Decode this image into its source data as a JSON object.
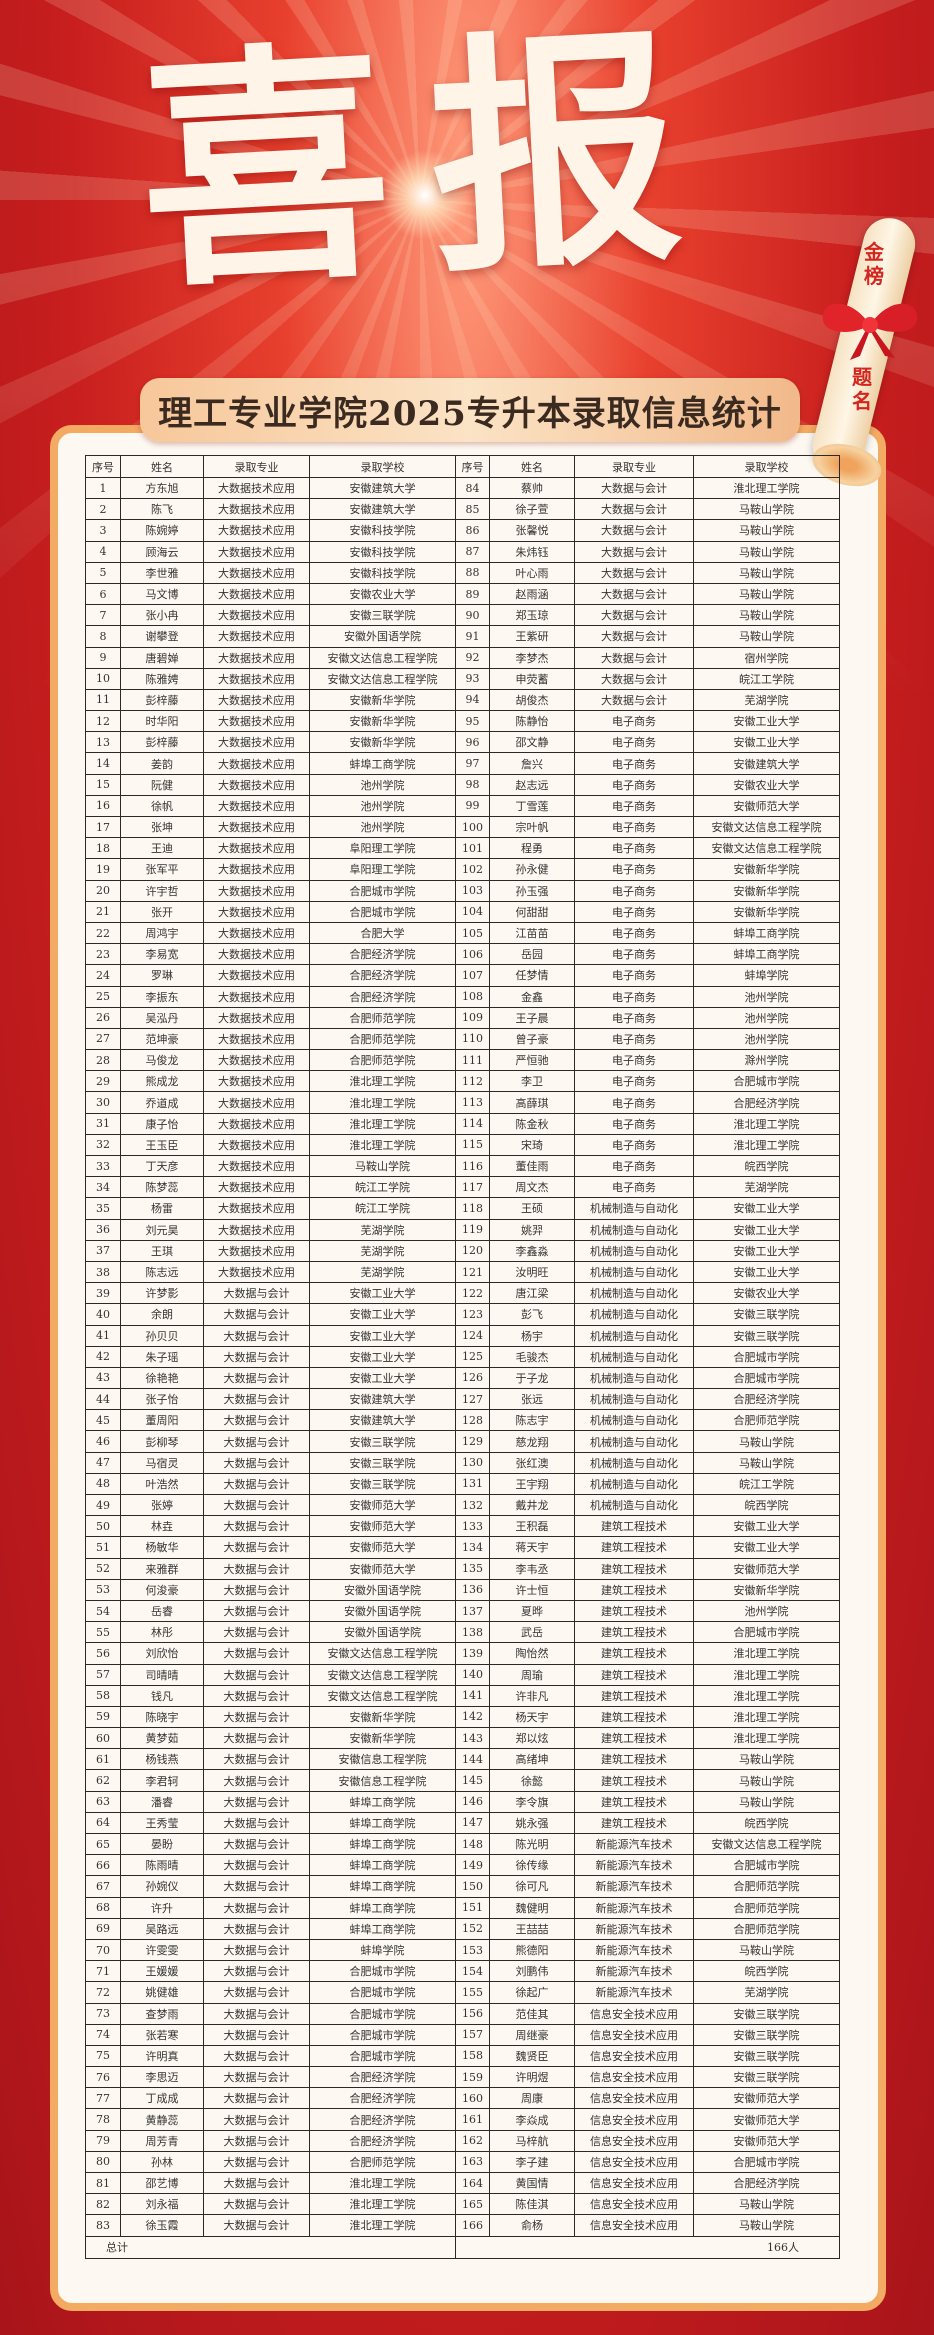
{
  "hero_title": "喜报",
  "banner_title": "理工专业学院2025专升本录取信息统计",
  "scroll_text_top": "金榜",
  "scroll_text_bottom": "题名",
  "colors": {
    "background": "#c81e1e",
    "card_border": "#f3aa62",
    "card_bg": "#fdf8f1",
    "scroll_text": "#d2261e"
  },
  "table": {
    "headers": [
      "序号",
      "姓名",
      "录取专业",
      "录取学校",
      "序号",
      "姓名",
      "录取专业",
      "录取学校"
    ],
    "left_rows": [
      [
        "1",
        "方东旭",
        "大数据技术应用",
        "安徽建筑大学"
      ],
      [
        "2",
        "陈飞",
        "大数据技术应用",
        "安徽建筑大学"
      ],
      [
        "3",
        "陈婉婷",
        "大数据技术应用",
        "安徽科技学院"
      ],
      [
        "4",
        "顾海云",
        "大数据技术应用",
        "安徽科技学院"
      ],
      [
        "5",
        "李世雅",
        "大数据技术应用",
        "安徽科技学院"
      ],
      [
        "6",
        "马文博",
        "大数据技术应用",
        "安徽农业大学"
      ],
      [
        "7",
        "张小冉",
        "大数据技术应用",
        "安徽三联学院"
      ],
      [
        "8",
        "谢攀登",
        "大数据技术应用",
        "安徽外国语学院"
      ],
      [
        "9",
        "唐碧婵",
        "大数据技术应用",
        "安徽文达信息工程学院"
      ],
      [
        "10",
        "陈雅娉",
        "大数据技术应用",
        "安徽文达信息工程学院"
      ],
      [
        "11",
        "彭梓藤",
        "大数据技术应用",
        "安徽新华学院"
      ],
      [
        "12",
        "时华阳",
        "大数据技术应用",
        "安徽新华学院"
      ],
      [
        "13",
        "彭梓藤",
        "大数据技术应用",
        "安徽新华学院"
      ],
      [
        "14",
        "姜韵",
        "大数据技术应用",
        "蚌埠工商学院"
      ],
      [
        "15",
        "阮健",
        "大数据技术应用",
        "池州学院"
      ],
      [
        "16",
        "徐帆",
        "大数据技术应用",
        "池州学院"
      ],
      [
        "17",
        "张坤",
        "大数据技术应用",
        "池州学院"
      ],
      [
        "18",
        "王迪",
        "大数据技术应用",
        "阜阳理工学院"
      ],
      [
        "19",
        "张军平",
        "大数据技术应用",
        "阜阳理工学院"
      ],
      [
        "20",
        "许宇哲",
        "大数据技术应用",
        "合肥城市学院"
      ],
      [
        "21",
        "张开",
        "大数据技术应用",
        "合肥城市学院"
      ],
      [
        "22",
        "周鸿宇",
        "大数据技术应用",
        "合肥大学"
      ],
      [
        "23",
        "李易宽",
        "大数据技术应用",
        "合肥经济学院"
      ],
      [
        "24",
        "罗琳",
        "大数据技术应用",
        "合肥经济学院"
      ],
      [
        "25",
        "李振东",
        "大数据技术应用",
        "合肥经济学院"
      ],
      [
        "26",
        "吴泓丹",
        "大数据技术应用",
        "合肥师范学院"
      ],
      [
        "27",
        "范坤豪",
        "大数据技术应用",
        "合肥师范学院"
      ],
      [
        "28",
        "马俊龙",
        "大数据技术应用",
        "合肥师范学院"
      ],
      [
        "29",
        "熊成龙",
        "大数据技术应用",
        "淮北理工学院"
      ],
      [
        "30",
        "乔道成",
        "大数据技术应用",
        "淮北理工学院"
      ],
      [
        "31",
        "康子怡",
        "大数据技术应用",
        "淮北理工学院"
      ],
      [
        "32",
        "王玉臣",
        "大数据技术应用",
        "淮北理工学院"
      ],
      [
        "33",
        "丁天彦",
        "大数据技术应用",
        "马鞍山学院"
      ],
      [
        "34",
        "陈梦蕊",
        "大数据技术应用",
        "皖江工学院"
      ],
      [
        "35",
        "杨雷",
        "大数据技术应用",
        "皖江工学院"
      ],
      [
        "36",
        "刘元昊",
        "大数据技术应用",
        "芜湖学院"
      ],
      [
        "37",
        "王琪",
        "大数据技术应用",
        "芜湖学院"
      ],
      [
        "38",
        "陈志远",
        "大数据技术应用",
        "芜湖学院"
      ],
      [
        "39",
        "许梦影",
        "大数据与会计",
        "安徽工业大学"
      ],
      [
        "40",
        "余朗",
        "大数据与会计",
        "安徽工业大学"
      ],
      [
        "41",
        "孙贝贝",
        "大数据与会计",
        "安徽工业大学"
      ],
      [
        "42",
        "朱子瑶",
        "大数据与会计",
        "安徽工业大学"
      ],
      [
        "43",
        "徐艳艳",
        "大数据与会计",
        "安徽工业大学"
      ],
      [
        "44",
        "张子怡",
        "大数据与会计",
        "安徽建筑大学"
      ],
      [
        "45",
        "董周阳",
        "大数据与会计",
        "安徽建筑大学"
      ],
      [
        "46",
        "彭柳琴",
        "大数据与会计",
        "安徽三联学院"
      ],
      [
        "47",
        "马宿灵",
        "大数据与会计",
        "安徽三联学院"
      ],
      [
        "48",
        "叶浩然",
        "大数据与会计",
        "安徽三联学院"
      ],
      [
        "49",
        "张婷",
        "大数据与会计",
        "安徽师范大学"
      ],
      [
        "50",
        "林垚",
        "大数据与会计",
        "安徽师范大学"
      ],
      [
        "51",
        "杨敏华",
        "大数据与会计",
        "安徽师范大学"
      ],
      [
        "52",
        "来雅群",
        "大数据与会计",
        "安徽师范大学"
      ],
      [
        "53",
        "何浚豪",
        "大数据与会计",
        "安徽外国语学院"
      ],
      [
        "54",
        "岳睿",
        "大数据与会计",
        "安徽外国语学院"
      ],
      [
        "55",
        "林彤",
        "大数据与会计",
        "安徽外国语学院"
      ],
      [
        "56",
        "刘欣怡",
        "大数据与会计",
        "安徽文达信息工程学院"
      ],
      [
        "57",
        "司晴晴",
        "大数据与会计",
        "安徽文达信息工程学院"
      ],
      [
        "58",
        "钱凡",
        "大数据与会计",
        "安徽文达信息工程学院"
      ],
      [
        "59",
        "陈晓宇",
        "大数据与会计",
        "安徽新华学院"
      ],
      [
        "60",
        "黄梦茹",
        "大数据与会计",
        "安徽新华学院"
      ],
      [
        "61",
        "杨钱燕",
        "大数据与会计",
        "安徽信息工程学院"
      ],
      [
        "62",
        "李君轲",
        "大数据与会计",
        "安徽信息工程学院"
      ],
      [
        "63",
        "潘睿",
        "大数据与会计",
        "蚌埠工商学院"
      ],
      [
        "64",
        "王秀莹",
        "大数据与会计",
        "蚌埠工商学院"
      ],
      [
        "65",
        "晏盼",
        "大数据与会计",
        "蚌埠工商学院"
      ],
      [
        "66",
        "陈雨晴",
        "大数据与会计",
        "蚌埠工商学院"
      ],
      [
        "67",
        "孙婉仪",
        "大数据与会计",
        "蚌埠工商学院"
      ],
      [
        "68",
        "许升",
        "大数据与会计",
        "蚌埠工商学院"
      ],
      [
        "69",
        "吴路远",
        "大数据与会计",
        "蚌埠工商学院"
      ],
      [
        "70",
        "许雯雯",
        "大数据与会计",
        "蚌埠学院"
      ],
      [
        "71",
        "王媛媛",
        "大数据与会计",
        "合肥城市学院"
      ],
      [
        "72",
        "姚健雄",
        "大数据与会计",
        "合肥城市学院"
      ],
      [
        "73",
        "查梦雨",
        "大数据与会计",
        "合肥城市学院"
      ],
      [
        "74",
        "张若寒",
        "大数据与会计",
        "合肥城市学院"
      ],
      [
        "75",
        "许明真",
        "大数据与会计",
        "合肥城市学院"
      ],
      [
        "76",
        "李思迈",
        "大数据与会计",
        "合肥经济学院"
      ],
      [
        "77",
        "丁成成",
        "大数据与会计",
        "合肥经济学院"
      ],
      [
        "78",
        "黄静蕊",
        "大数据与会计",
        "合肥经济学院"
      ],
      [
        "79",
        "周芳青",
        "大数据与会计",
        "合肥经济学院"
      ],
      [
        "80",
        "孙林",
        "大数据与会计",
        "合肥师范学院"
      ],
      [
        "81",
        "邵艺博",
        "大数据与会计",
        "淮北理工学院"
      ],
      [
        "82",
        "刘永福",
        "大数据与会计",
        "淮北理工学院"
      ],
      [
        "83",
        "徐玉霞",
        "大数据与会计",
        "淮北理工学院"
      ]
    ],
    "right_rows": [
      [
        "84",
        "蔡帅",
        "大数据与会计",
        "淮北理工学院"
      ],
      [
        "85",
        "徐子萱",
        "大数据与会计",
        "马鞍山学院"
      ],
      [
        "86",
        "张馨悦",
        "大数据与会计",
        "马鞍山学院"
      ],
      [
        "87",
        "朱炜钰",
        "大数据与会计",
        "马鞍山学院"
      ],
      [
        "88",
        "叶心雨",
        "大数据与会计",
        "马鞍山学院"
      ],
      [
        "89",
        "赵雨涵",
        "大数据与会计",
        "马鞍山学院"
      ],
      [
        "90",
        "郑玉琼",
        "大数据与会计",
        "马鞍山学院"
      ],
      [
        "91",
        "王紫研",
        "大数据与会计",
        "马鞍山学院"
      ],
      [
        "92",
        "李梦杰",
        "大数据与会计",
        "宿州学院"
      ],
      [
        "93",
        "申荧蓄",
        "大数据与会计",
        "皖江工学院"
      ],
      [
        "94",
        "胡俊杰",
        "大数据与会计",
        "芜湖学院"
      ],
      [
        "95",
        "陈静怡",
        "电子商务",
        "安徽工业大学"
      ],
      [
        "96",
        "邵文静",
        "电子商务",
        "安徽工业大学"
      ],
      [
        "97",
        "詹兴",
        "电子商务",
        "安徽建筑大学"
      ],
      [
        "98",
        "赵志远",
        "电子商务",
        "安徽农业大学"
      ],
      [
        "99",
        "丁雪莲",
        "电子商务",
        "安徽师范大学"
      ],
      [
        "100",
        "宗叶帆",
        "电子商务",
        "安徽文达信息工程学院"
      ],
      [
        "101",
        "程勇",
        "电子商务",
        "安徽文达信息工程学院"
      ],
      [
        "102",
        "孙永健",
        "电子商务",
        "安徽新华学院"
      ],
      [
        "103",
        "孙玉强",
        "电子商务",
        "安徽新华学院"
      ],
      [
        "104",
        "何甜甜",
        "电子商务",
        "安徽新华学院"
      ],
      [
        "105",
        "江苗苗",
        "电子商务",
        "蚌埠工商学院"
      ],
      [
        "106",
        "岳园",
        "电子商务",
        "蚌埠工商学院"
      ],
      [
        "107",
        "任梦情",
        "电子商务",
        "蚌埠学院"
      ],
      [
        "108",
        "金鑫",
        "电子商务",
        "池州学院"
      ],
      [
        "109",
        "王子晨",
        "电子商务",
        "池州学院"
      ],
      [
        "110",
        "曾子豪",
        "电子商务",
        "池州学院"
      ],
      [
        "111",
        "严恒驰",
        "电子商务",
        "滁州学院"
      ],
      [
        "112",
        "李卫",
        "电子商务",
        "合肥城市学院"
      ],
      [
        "113",
        "高薛琪",
        "电子商务",
        "合肥经济学院"
      ],
      [
        "114",
        "陈金秋",
        "电子商务",
        "淮北理工学院"
      ],
      [
        "115",
        "宋琦",
        "电子商务",
        "淮北理工学院"
      ],
      [
        "116",
        "董佳雨",
        "电子商务",
        "皖西学院"
      ],
      [
        "117",
        "周文杰",
        "电子商务",
        "芜湖学院"
      ],
      [
        "118",
        "王硕",
        "机械制造与自动化",
        "安徽工业大学"
      ],
      [
        "119",
        "姚羿",
        "机械制造与自动化",
        "安徽工业大学"
      ],
      [
        "120",
        "李鑫淼",
        "机械制造与自动化",
        "安徽工业大学"
      ],
      [
        "121",
        "汝明旺",
        "机械制造与自动化",
        "安徽工业大学"
      ],
      [
        "122",
        "唐江梁",
        "机械制造与自动化",
        "安徽农业大学"
      ],
      [
        "123",
        "彭飞",
        "机械制造与自动化",
        "安徽三联学院"
      ],
      [
        "124",
        "杨宇",
        "机械制造与自动化",
        "安徽三联学院"
      ],
      [
        "125",
        "毛骏杰",
        "机械制造与自动化",
        "合肥城市学院"
      ],
      [
        "126",
        "于子龙",
        "机械制造与自动化",
        "合肥城市学院"
      ],
      [
        "127",
        "张远",
        "机械制造与自动化",
        "合肥经济学院"
      ],
      [
        "128",
        "陈志宇",
        "机械制造与自动化",
        "合肥师范学院"
      ],
      [
        "129",
        "慈龙翔",
        "机械制造与自动化",
        "马鞍山学院"
      ],
      [
        "130",
        "张红澳",
        "机械制造与自动化",
        "马鞍山学院"
      ],
      [
        "131",
        "王宇翔",
        "机械制造与自动化",
        "皖江工学院"
      ],
      [
        "132",
        "戴井龙",
        "机械制造与自动化",
        "皖西学院"
      ],
      [
        "133",
        "王积磊",
        "建筑工程技术",
        "安徽工业大学"
      ],
      [
        "134",
        "蒋天宇",
        "建筑工程技术",
        "安徽工业大学"
      ],
      [
        "135",
        "李韦丞",
        "建筑工程技术",
        "安徽师范大学"
      ],
      [
        "136",
        "许士恒",
        "建筑工程技术",
        "安徽新华学院"
      ],
      [
        "137",
        "夏晔",
        "建筑工程技术",
        "池州学院"
      ],
      [
        "138",
        "武岳",
        "建筑工程技术",
        "合肥城市学院"
      ],
      [
        "139",
        "陶怡然",
        "建筑工程技术",
        "淮北理工学院"
      ],
      [
        "140",
        "周瑜",
        "建筑工程技术",
        "淮北理工学院"
      ],
      [
        "141",
        "许非凡",
        "建筑工程技术",
        "淮北理工学院"
      ],
      [
        "142",
        "杨天宇",
        "建筑工程技术",
        "淮北理工学院"
      ],
      [
        "143",
        "郑以炫",
        "建筑工程技术",
        "淮北理工学院"
      ],
      [
        "144",
        "高绪坤",
        "建筑工程技术",
        "马鞍山学院"
      ],
      [
        "145",
        "徐懿",
        "建筑工程技术",
        "马鞍山学院"
      ],
      [
        "146",
        "李令旗",
        "建筑工程技术",
        "马鞍山学院"
      ],
      [
        "147",
        "姚永强",
        "建筑工程技术",
        "皖西学院"
      ],
      [
        "148",
        "陈光明",
        "新能源汽车技术",
        "安徽文达信息工程学院"
      ],
      [
        "149",
        "徐传缘",
        "新能源汽车技术",
        "合肥城市学院"
      ],
      [
        "150",
        "徐可凡",
        "新能源汽车技术",
        "合肥师范学院"
      ],
      [
        "151",
        "魏健明",
        "新能源汽车技术",
        "合肥师范学院"
      ],
      [
        "152",
        "王喆喆",
        "新能源汽车技术",
        "合肥师范学院"
      ],
      [
        "153",
        "熊德阳",
        "新能源汽车技术",
        "马鞍山学院"
      ],
      [
        "154",
        "刘鹏伟",
        "新能源汽车技术",
        "皖西学院"
      ],
      [
        "155",
        "徐起广",
        "新能源汽车技术",
        "芜湖学院"
      ],
      [
        "156",
        "范佳其",
        "信息安全技术应用",
        "安徽三联学院"
      ],
      [
        "157",
        "周继豪",
        "信息安全技术应用",
        "安徽三联学院"
      ],
      [
        "158",
        "魏贤臣",
        "信息安全技术应用",
        "安徽三联学院"
      ],
      [
        "159",
        "许明煜",
        "信息安全技术应用",
        "安徽三联学院"
      ],
      [
        "160",
        "周康",
        "信息安全技术应用",
        "安徽师范大学"
      ],
      [
        "161",
        "李焱成",
        "信息安全技术应用",
        "安徽师范大学"
      ],
      [
        "162",
        "马梓航",
        "信息安全技术应用",
        "安徽师范大学"
      ],
      [
        "163",
        "李子建",
        "信息安全技术应用",
        "合肥城市学院"
      ],
      [
        "164",
        "黄国情",
        "信息安全技术应用",
        "合肥经济学院"
      ],
      [
        "165",
        "陈佳淇",
        "信息安全技术应用",
        "马鞍山学院"
      ],
      [
        "166",
        "俞杨",
        "信息安全技术应用",
        "马鞍山学院"
      ]
    ],
    "total_label": "总计",
    "total_value": "166人"
  }
}
